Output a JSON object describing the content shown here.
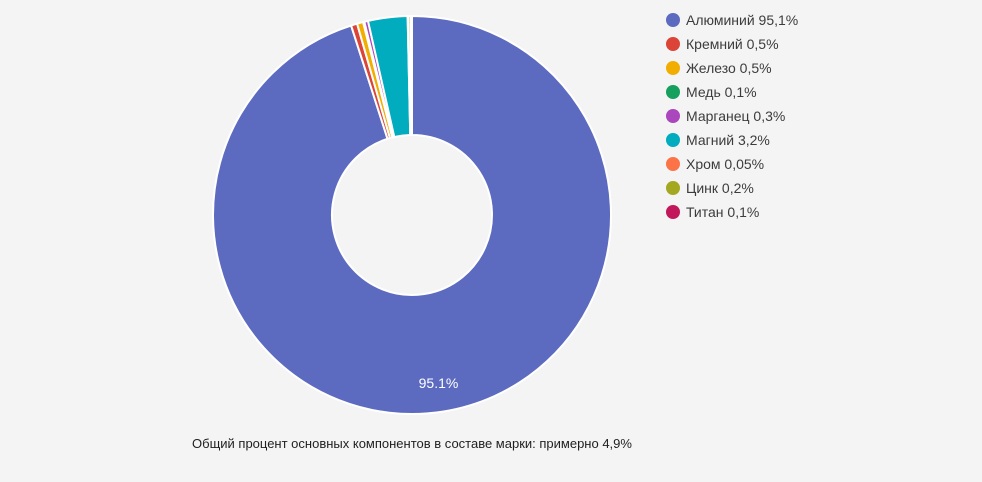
{
  "background_color": "#f4f4f4",
  "chart_data": {
    "type": "pie",
    "subtype": "donut",
    "title": "",
    "caption": "Общий процент основных компонентов в составе марки: примерно 4,9%",
    "slice_label": "95.1%",
    "slice_label_color": "#ffffff",
    "border_color": "#ffffff",
    "inner_radius_ratio": 0.4,
    "start_angle_deg": 0,
    "direction": "clockwise",
    "legend_position": "right",
    "labels": [
      "Алюминий",
      "Кремний",
      "Железо",
      "Медь",
      "Марганец",
      "Магний",
      "Хром",
      "Цинк",
      "Титан"
    ],
    "values": [
      95.1,
      0.5,
      0.5,
      0.1,
      0.3,
      3.2,
      0.05,
      0.2,
      0.1
    ],
    "colors": [
      "#5C6BC0",
      "#DB4437",
      "#F2AE00",
      "#16A05E",
      "#AB47BC",
      "#00ACBD",
      "#FB7347",
      "#A4A821",
      "#C2185B"
    ]
  },
  "legend": {
    "items": [
      {
        "label": "Алюминий 95,1%",
        "color": "#5C6BC0"
      },
      {
        "label": "Кремний 0,5%",
        "color": "#DB4437"
      },
      {
        "label": "Железо 0,5%",
        "color": "#F2AE00"
      },
      {
        "label": "Медь 0,1%",
        "color": "#16A05E"
      },
      {
        "label": "Марганец 0,3%",
        "color": "#AB47BC"
      },
      {
        "label": "Магний 3,2%",
        "color": "#00ACBD"
      },
      {
        "label": "Хром 0,05%",
        "color": "#FB7347"
      },
      {
        "label": "Цинк 0,2%",
        "color": "#A4A821"
      },
      {
        "label": "Титан 0,1%",
        "color": "#C2185B"
      }
    ]
  }
}
